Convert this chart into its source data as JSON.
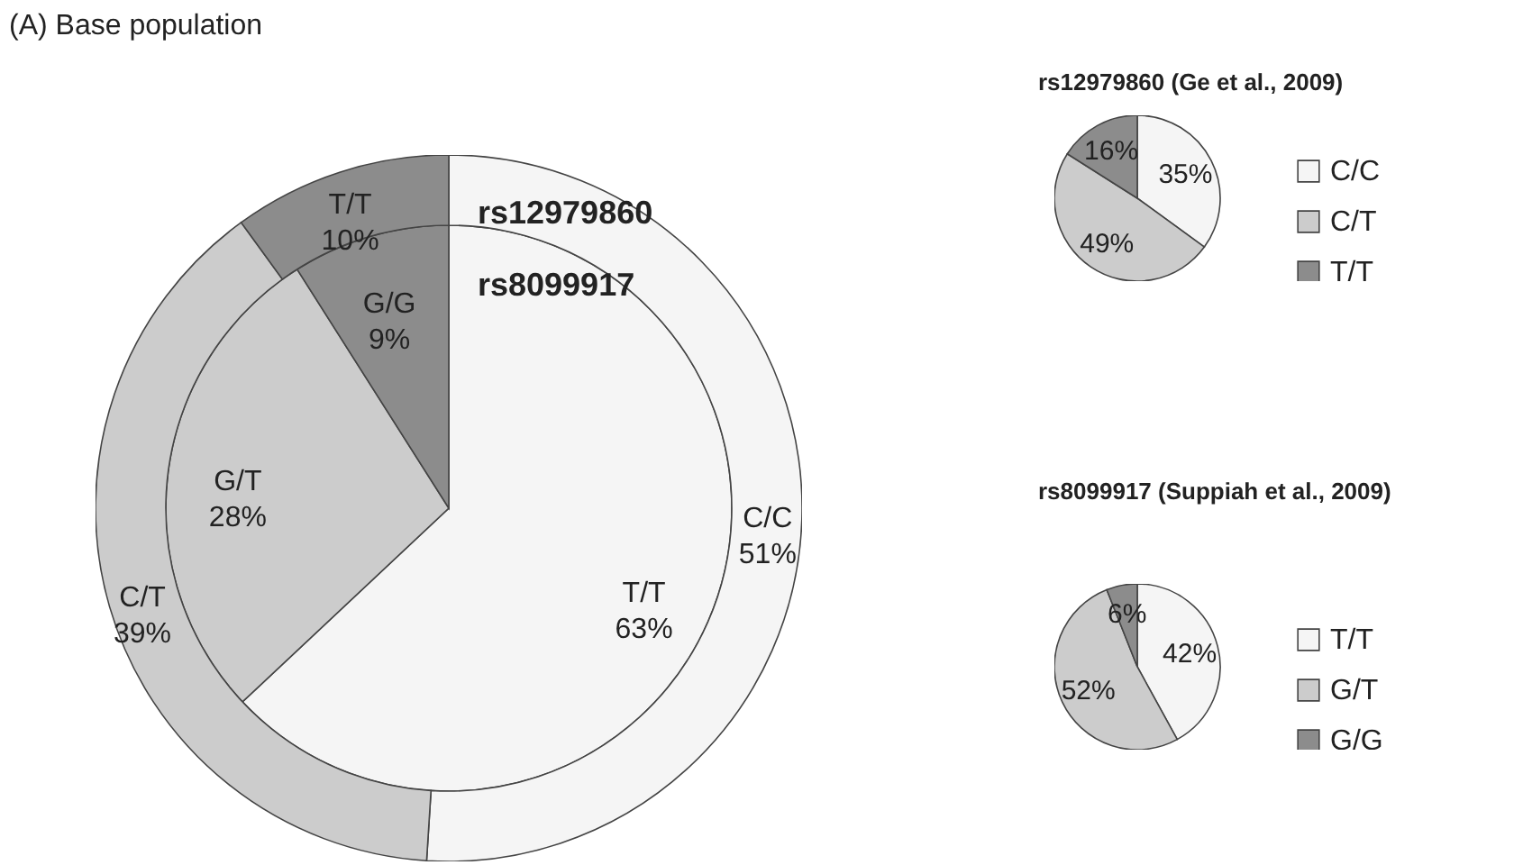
{
  "chart_data": [
    {
      "type": "donut",
      "title": "(A) Base population",
      "categories": [
        "C/C",
        "C/T",
        "T/T"
      ],
      "values": [
        51,
        39,
        10
      ],
      "colors": [
        "#f5f5f5",
        "#cccccc",
        "#8c8c8c"
      ],
      "value_labels": [
        "51%",
        "39%",
        "10%"
      ],
      "annotations": [
        "rs12979860"
      ]
    },
    {
      "type": "pie",
      "categories": [
        "T/T",
        "G/T",
        "G/G"
      ],
      "values": [
        63,
        28,
        9
      ],
      "colors": [
        "#f5f5f5",
        "#cccccc",
        "#8c8c8c"
      ],
      "value_labels": [
        "63%",
        "28%",
        "9%"
      ],
      "annotations": [
        "rs8099917"
      ]
    },
    {
      "type": "pie",
      "title": "rs12979860 (Ge et al., 2009)",
      "categories": [
        "C/C",
        "C/T",
        "T/T"
      ],
      "values": [
        35,
        49,
        16
      ],
      "colors": [
        "#f5f5f5",
        "#cccccc",
        "#8c8c8c"
      ],
      "value_labels": [
        "35%",
        "49%",
        "16%"
      ],
      "legend": "right"
    },
    {
      "type": "pie",
      "title": "rs8099917 (Suppiah et al., 2009)",
      "categories": [
        "T/T",
        "G/T",
        "G/G"
      ],
      "values": [
        42,
        52,
        6
      ],
      "colors": [
        "#f5f5f5",
        "#cccccc",
        "#8c8c8c"
      ],
      "value_labels": [
        "42%",
        "52%",
        "6%"
      ],
      "legend": "right"
    }
  ]
}
